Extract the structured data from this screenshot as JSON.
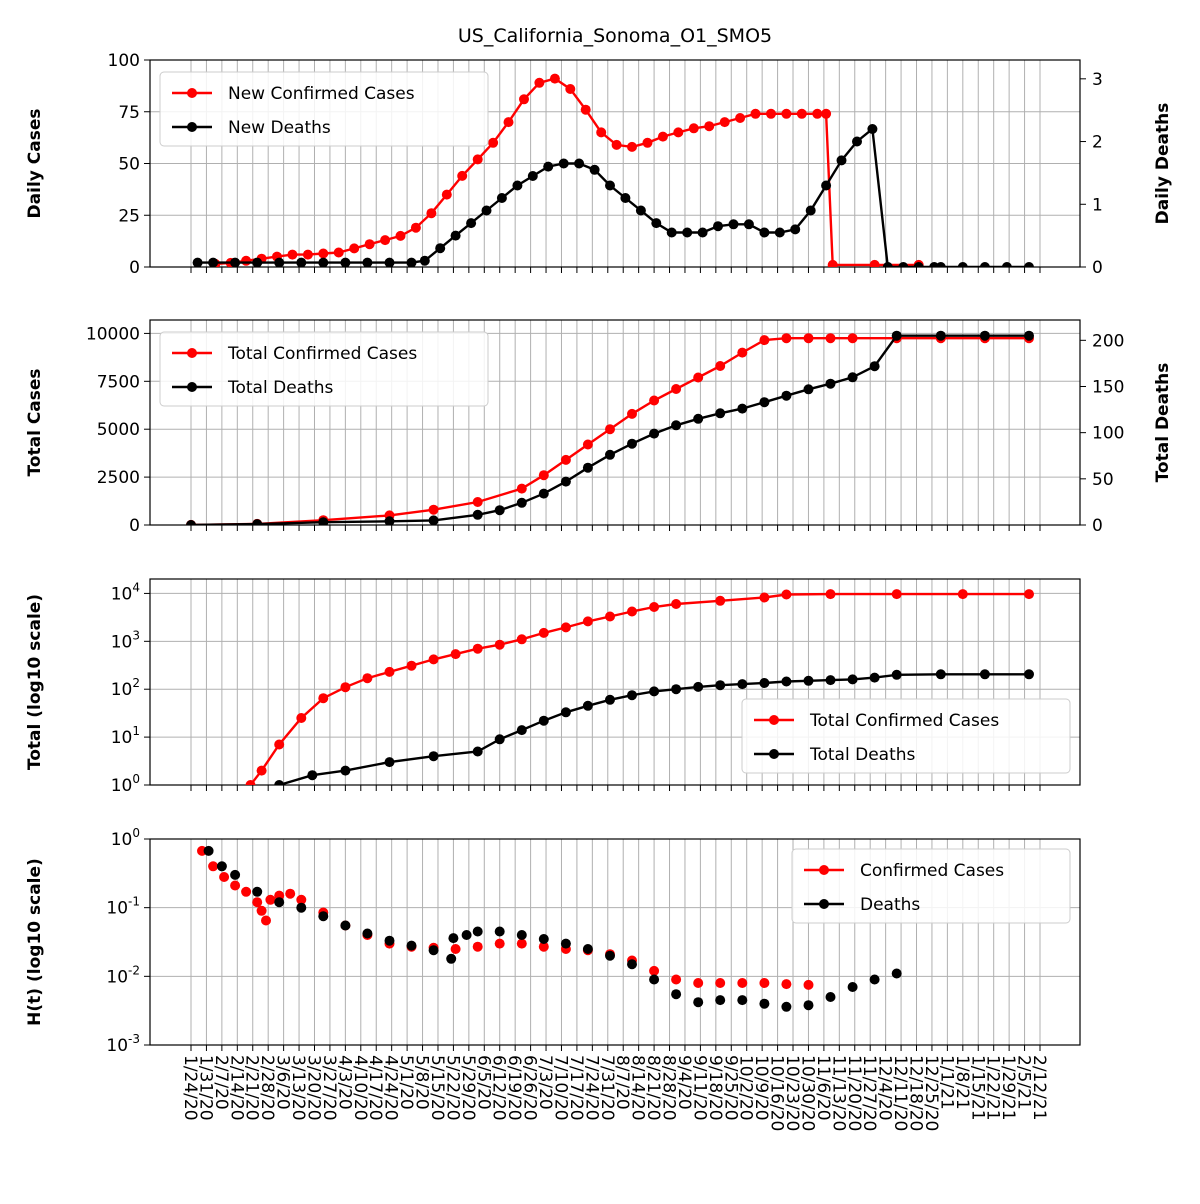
{
  "chart_data": [
    {
      "type": "line",
      "title": "US_California_Sonoma_O1_SMO5",
      "ylabel": "Daily Cases",
      "ylabel_right": "Daily Deaths",
      "ylim": [
        0,
        100
      ],
      "ylim_right": [
        0,
        3.3
      ],
      "yticks": [
        "0",
        "25",
        "50",
        "75",
        "100"
      ],
      "yticks_right": [
        "0",
        "1",
        "2",
        "3"
      ],
      "legend": "upper-left",
      "series": [
        {
          "name": "New Confirmed Cases",
          "color": "#ff0000",
          "axis": "left",
          "x": [
            11,
            18,
            25,
            32,
            39,
            46,
            53,
            60,
            67,
            74,
            81,
            88,
            95,
            102,
            109,
            116,
            123,
            130,
            137,
            144,
            151,
            158,
            165,
            172,
            179,
            186,
            193,
            200,
            207,
            214,
            221,
            228,
            235,
            242,
            249,
            256,
            263,
            270,
            277,
            284,
            288,
            291,
            310,
            330
          ],
          "values": [
            1.5,
            2,
            3,
            4,
            5,
            6,
            6,
            6.5,
            7,
            9,
            11,
            13,
            15,
            19,
            26,
            35,
            44,
            52,
            60,
            70,
            81,
            89,
            91,
            86,
            76,
            65,
            59,
            58,
            60,
            63,
            65,
            67,
            68,
            70,
            72,
            74,
            74,
            74,
            74,
            74,
            74,
            1,
            1,
            1
          ]
        },
        {
          "name": "New Deaths",
          "color": "#000000",
          "axis": "right",
          "x": [
            3,
            10,
            20,
            30,
            40,
            50,
            60,
            70,
            80,
            90,
            100,
            106,
            113,
            120,
            127,
            134,
            141,
            148,
            155,
            162,
            169,
            176,
            183,
            190,
            197,
            204,
            211,
            218,
            225,
            232,
            239,
            246,
            253,
            260,
            267,
            274,
            281,
            288,
            295,
            302,
            309,
            316,
            323,
            330,
            337,
            340,
            350,
            360,
            370,
            380
          ],
          "values": [
            0.07,
            0.07,
            0.07,
            0.07,
            0.07,
            0.07,
            0.07,
            0.07,
            0.07,
            0.07,
            0.07,
            0.1,
            0.3,
            0.5,
            0.7,
            0.9,
            1.1,
            1.3,
            1.45,
            1.6,
            1.65,
            1.65,
            1.55,
            1.3,
            1.1,
            0.9,
            0.7,
            0.55,
            0.55,
            0.55,
            0.65,
            0.68,
            0.68,
            0.55,
            0.55,
            0.6,
            0.9,
            1.3,
            1.7,
            2.0,
            2.2,
            0,
            0,
            0,
            0,
            0,
            0,
            0,
            0,
            0
          ]
        }
      ]
    },
    {
      "type": "line",
      "ylabel": "Total Cases",
      "ylabel_right": "Total Deaths",
      "ylim": [
        0,
        10700
      ],
      "ylim_right": [
        0,
        222
      ],
      "yticks": [
        "0",
        "2500",
        "5000",
        "7500",
        "10000"
      ],
      "yticks_right": [
        "0",
        "50",
        "100",
        "150",
        "200"
      ],
      "legend": "upper-left",
      "series": [
        {
          "name": "Total Confirmed Cases",
          "color": "#ff0000",
          "axis": "left",
          "x": [
            0,
            30,
            60,
            90,
            110,
            130,
            150,
            160,
            170,
            180,
            190,
            200,
            210,
            220,
            230,
            240,
            250,
            260,
            270,
            280,
            290,
            300,
            320,
            340,
            360,
            380
          ],
          "values": [
            5,
            60,
            250,
            500,
            800,
            1200,
            1900,
            2600,
            3400,
            4200,
            5000,
            5800,
            6500,
            7100,
            7700,
            8300,
            9000,
            9650,
            9750,
            9750,
            9750,
            9750,
            9750,
            9750,
            9750,
            9750
          ]
        },
        {
          "name": "Total Deaths",
          "color": "#000000",
          "axis": "right",
          "x": [
            0,
            30,
            60,
            90,
            110,
            130,
            140,
            150,
            160,
            170,
            180,
            190,
            200,
            210,
            220,
            230,
            240,
            250,
            260,
            270,
            280,
            290,
            300,
            310,
            320,
            340,
            360,
            380
          ],
          "values": [
            0,
            1,
            3,
            4,
            5,
            11,
            16,
            24,
            34,
            47,
            62,
            76,
            88,
            99,
            108,
            115,
            121,
            126,
            133,
            140,
            147,
            153,
            160,
            172,
            205,
            205,
            205,
            205
          ]
        }
      ]
    },
    {
      "type": "line",
      "ylabel": "Total (log10 scale)",
      "yscale": "log",
      "ylim": [
        1,
        20000
      ],
      "yticks": [
        "10^0",
        "10^1",
        "10^2",
        "10^3",
        "10^4"
      ],
      "legend": "lower-right",
      "series": [
        {
          "name": "Total Confirmed Cases",
          "color": "#ff0000",
          "x": [
            27,
            32,
            40,
            50,
            60,
            70,
            80,
            90,
            100,
            110,
            120,
            130,
            140,
            150,
            160,
            170,
            180,
            190,
            200,
            210,
            220,
            240,
            260,
            270,
            290,
            320,
            350,
            380
          ],
          "values": [
            1,
            2,
            7,
            25,
            65,
            110,
            170,
            230,
            310,
            420,
            540,
            700,
            850,
            1100,
            1500,
            1950,
            2600,
            3300,
            4200,
            5200,
            6000,
            7000,
            8200,
            9500,
            9700,
            9700,
            9700,
            9700
          ]
        },
        {
          "name": "Total Deaths",
          "color": "#000000",
          "x": [
            40,
            55,
            70,
            90,
            110,
            130,
            140,
            150,
            160,
            170,
            180,
            190,
            200,
            210,
            220,
            230,
            240,
            250,
            260,
            270,
            280,
            290,
            300,
            310,
            320,
            340,
            360,
            380
          ],
          "values": [
            1,
            1.6,
            2,
            3,
            4,
            5,
            9,
            14,
            22,
            33,
            45,
            60,
            75,
            90,
            100,
            112,
            121,
            128,
            135,
            145,
            150,
            155,
            160,
            175,
            200,
            205,
            205,
            205
          ]
        }
      ]
    },
    {
      "type": "scatter",
      "ylabel": "H(t) (log10 scale)",
      "yscale": "log",
      "ylim": [
        0.001,
        1
      ],
      "yticks": [
        "10^-3",
        "10^-2",
        "10^-1",
        "10^0"
      ],
      "legend": "upper-right",
      "series": [
        {
          "name": "Confirmed Cases",
          "color": "#ff0000",
          "x": [
            5,
            10,
            15,
            20,
            25,
            30,
            32,
            34,
            36,
            40,
            45,
            50,
            60,
            70,
            80,
            90,
            100,
            110,
            120,
            130,
            140,
            150,
            160,
            170,
            180,
            190,
            200,
            210,
            220,
            230,
            240,
            250,
            260,
            270,
            280
          ],
          "values": [
            0.67,
            0.4,
            0.28,
            0.21,
            0.17,
            0.12,
            0.09,
            0.065,
            0.13,
            0.15,
            0.16,
            0.13,
            0.085,
            0.055,
            0.04,
            0.03,
            0.027,
            0.026,
            0.025,
            0.027,
            0.03,
            0.03,
            0.027,
            0.025,
            0.024,
            0.021,
            0.017,
            0.012,
            0.009,
            0.008,
            0.008,
            0.008,
            0.008,
            0.0077,
            0.0075
          ]
        },
        {
          "name": "Deaths",
          "color": "#000000",
          "x": [
            8,
            14,
            20,
            30,
            40,
            50,
            60,
            70,
            80,
            90,
            100,
            110,
            118,
            119,
            125,
            130,
            140,
            150,
            160,
            170,
            180,
            190,
            200,
            210,
            220,
            230,
            240,
            250,
            260,
            270,
            280,
            290,
            300,
            310,
            320
          ],
          "values": [
            0.67,
            0.4,
            0.3,
            0.17,
            0.12,
            0.1,
            0.075,
            0.055,
            0.042,
            0.033,
            0.028,
            0.024,
            0.018,
            0.036,
            0.04,
            0.045,
            0.045,
            0.04,
            0.035,
            0.03,
            0.025,
            0.02,
            0.015,
            0.009,
            0.0055,
            0.0042,
            0.0045,
            0.0045,
            0.004,
            0.0036,
            0.0038,
            0.005,
            0.007,
            0.009,
            0.011
          ]
        }
      ]
    }
  ],
  "x_axis": {
    "start_day_of_year": 24,
    "days": 390,
    "tick_step_days": 7,
    "tick_labels": [
      "1/24/20",
      "1/31/20",
      "2/7/20",
      "2/14/20",
      "2/21/20",
      "2/28/20",
      "3/6/20",
      "3/13/20",
      "3/20/20",
      "3/27/20",
      "4/3/20",
      "4/10/20",
      "4/17/20",
      "4/24/20",
      "5/1/20",
      "5/8/20",
      "5/15/20",
      "5/22/20",
      "5/29/20",
      "6/5/20",
      "6/12/20",
      "6/19/20",
      "6/26/20",
      "7/3/20",
      "7/10/20",
      "7/17/20",
      "7/24/20",
      "7/31/20",
      "8/7/20",
      "8/14/20",
      "8/21/20",
      "8/28/20",
      "9/4/20",
      "9/11/20",
      "9/18/20",
      "9/25/20",
      "10/2/20",
      "10/9/20",
      "10/16/20",
      "10/23/20",
      "10/30/20",
      "11/6/20",
      "11/13/20",
      "11/20/20",
      "11/27/20",
      "12/4/20",
      "12/11/20",
      "12/18/20",
      "12/25/20",
      "1/1/21",
      "1/8/21",
      "1/15/21",
      "1/22/21",
      "1/29/21",
      "2/5/21",
      "2/12/21"
    ]
  }
}
